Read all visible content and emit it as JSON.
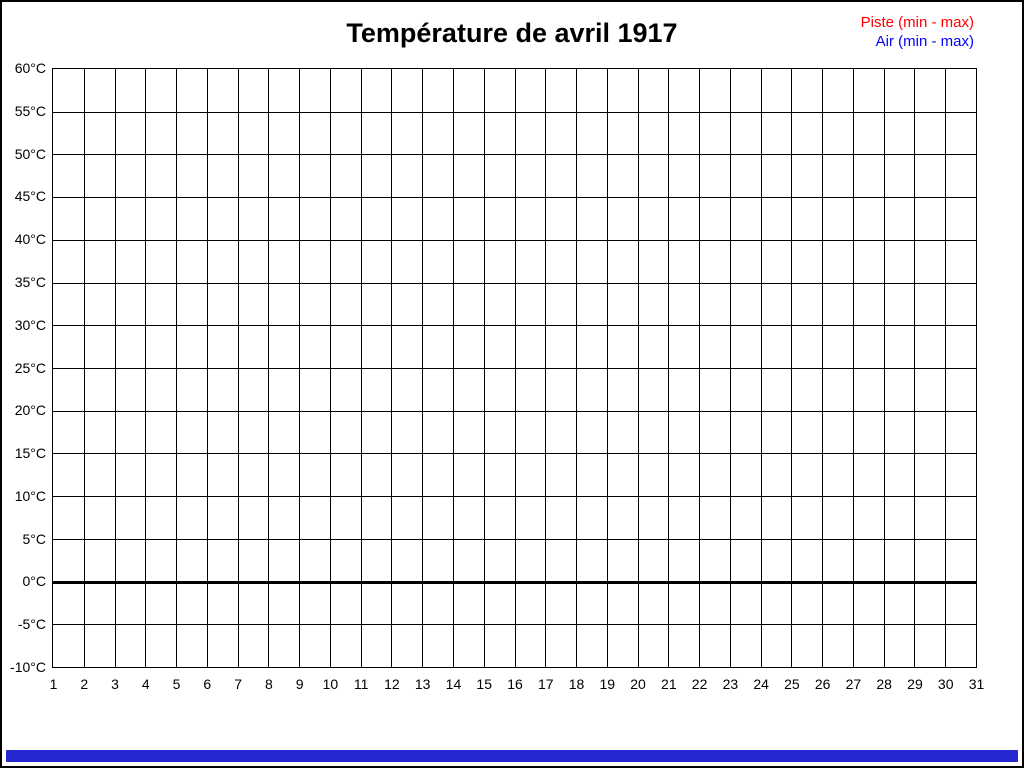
{
  "page": {
    "background_color": "#ffffff",
    "border_color": "#000000",
    "footer_bar_color": "#2626d2"
  },
  "chart_data": {
    "type": "line",
    "title": "Température de avril 1917",
    "xlabel": "",
    "ylabel": "",
    "x_ticks": [
      "1",
      "2",
      "3",
      "4",
      "5",
      "6",
      "7",
      "8",
      "9",
      "10",
      "11",
      "12",
      "13",
      "14",
      "15",
      "16",
      "17",
      "18",
      "19",
      "20",
      "21",
      "22",
      "23",
      "24",
      "25",
      "26",
      "27",
      "28",
      "29",
      "30",
      "31"
    ],
    "y_ticks": [
      "60°C",
      "55°C",
      "50°C",
      "45°C",
      "40°C",
      "35°C",
      "30°C",
      "25°C",
      "20°C",
      "15°C",
      "10°C",
      "5°C",
      "0°C",
      "-5°C",
      "-10°C"
    ],
    "y_unit": "°C",
    "ylim": [
      -10,
      60
    ],
    "y_step": 5,
    "xlim": [
      1,
      31
    ],
    "grid": true,
    "zero_line_value": 0,
    "legend_position": "top-right",
    "legend": [
      {
        "label": "Piste (min - max)",
        "color": "#ff0000"
      },
      {
        "label": "Air (min - max)",
        "color": "#0000ff"
      }
    ],
    "series": [
      {
        "name": "Piste (min - max)",
        "color": "#ff0000",
        "values": []
      },
      {
        "name": "Air (min - max)",
        "color": "#0000ff",
        "values": []
      }
    ]
  }
}
